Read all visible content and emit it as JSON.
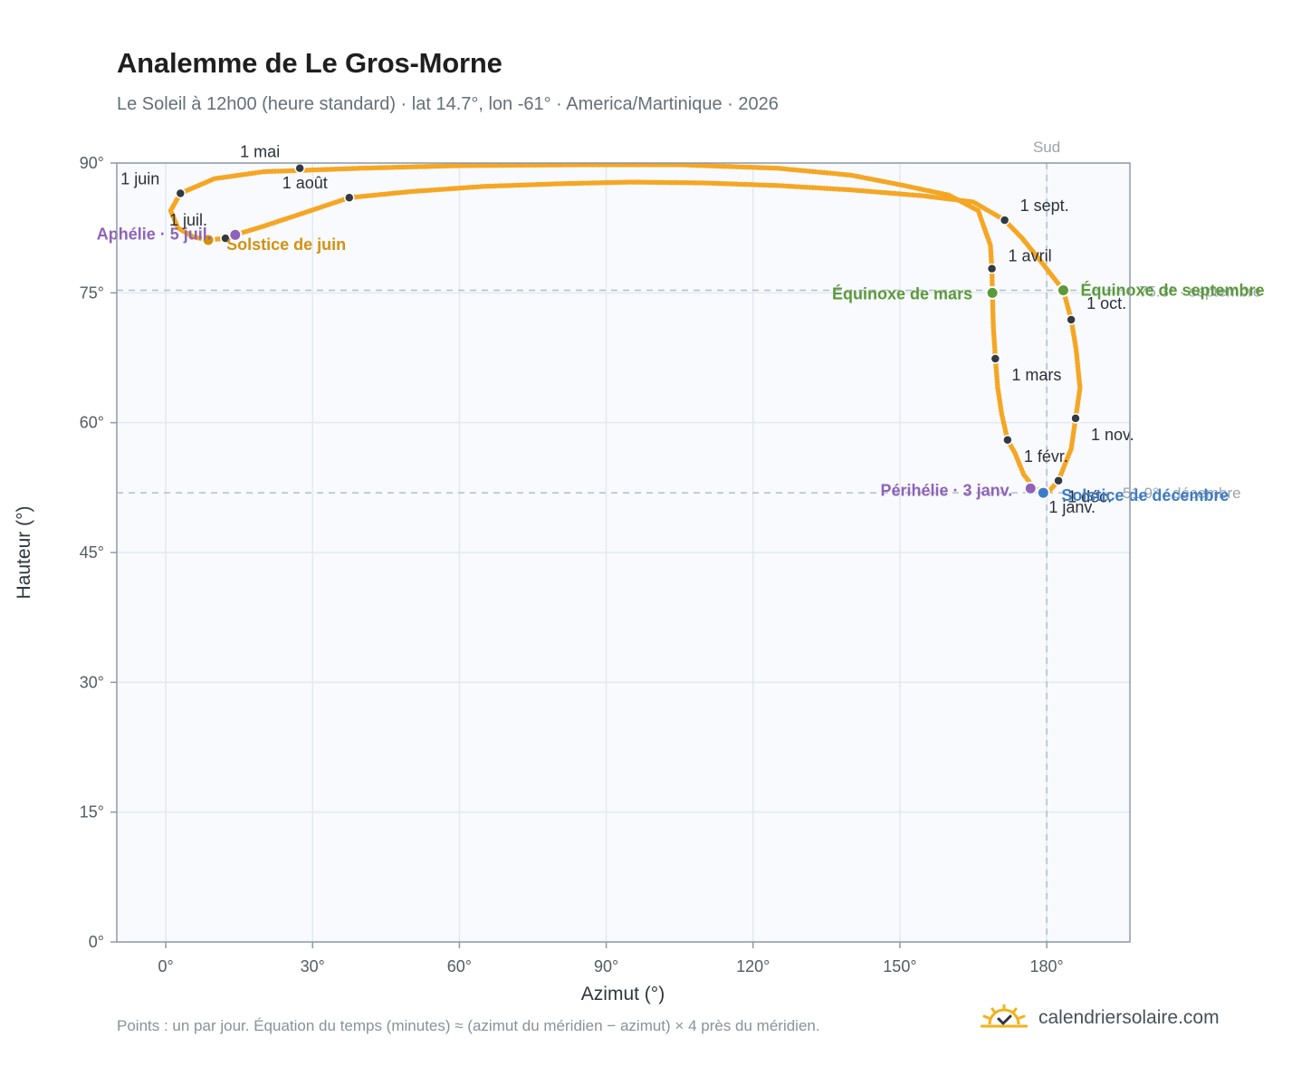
{
  "header": {
    "title": "Analemme de Le Gros-Morne",
    "subtitle": "Le Soleil à 12h00 (heure standard) · lat 14.7°, lon -61° · America/Martinique · 2026"
  },
  "footer": {
    "note": "Points : un par jour. Équation du temps (minutes) ≈ (azimut du méridien − azimut) × 4 près du méridien.",
    "brand": "calendriersolaire.com"
  },
  "colors": {
    "path": "#f5a623",
    "month_dot": "#333a44",
    "equinox": "#5a9a3a",
    "solstice_june": "#d4900f",
    "solstice_december": "#3d7cc9",
    "apsis": "#8e63b8",
    "grid": "#e4e9ef",
    "plot_bg": "#f8fafd",
    "frame": "#8f9aa8",
    "reference_line": "#b4bec9"
  },
  "chart_data": {
    "type": "scatter",
    "title": "Analemme de Le Gros-Morne",
    "xlabel": "Azimut (°)",
    "ylabel": "Hauteur (°)",
    "xlim": [
      -10,
      197
    ],
    "ylim": [
      0,
      90
    ],
    "x_ticks": [
      {
        "value": 0,
        "label": "0°"
      },
      {
        "value": 30,
        "label": "30°"
      },
      {
        "value": 60,
        "label": "60°"
      },
      {
        "value": 90,
        "label": "90°"
      },
      {
        "value": 120,
        "label": "120°"
      },
      {
        "value": 150,
        "label": "150°"
      },
      {
        "value": 180,
        "label": "180°"
      }
    ],
    "y_ticks": [
      {
        "value": 0,
        "label": "0°"
      },
      {
        "value": 15,
        "label": "15°"
      },
      {
        "value": 30,
        "label": "30°"
      },
      {
        "value": 45,
        "label": "45°"
      },
      {
        "value": 60,
        "label": "60°"
      },
      {
        "value": 75,
        "label": "75°"
      },
      {
        "value": 90,
        "label": "90°"
      }
    ],
    "grid": true,
    "reference_lines": {
      "vertical": {
        "x": 180,
        "label": "Sud"
      },
      "horizontal": [
        75.3,
        51.9
      ]
    },
    "daily_path": [
      [
        179.3,
        51.9
      ],
      [
        177.5,
        52.4
      ],
      [
        175.3,
        54.0
      ],
      [
        173.5,
        56.5
      ],
      [
        172.0,
        58.0
      ],
      [
        170.8,
        61.0
      ],
      [
        170.0,
        64.0
      ],
      [
        169.5,
        67.4
      ],
      [
        169.1,
        71.0
      ],
      [
        168.9,
        75.0
      ],
      [
        168.8,
        77.8
      ],
      [
        168.5,
        80.5
      ],
      [
        166.0,
        84.5
      ],
      [
        160.0,
        86.3
      ],
      [
        150.0,
        87.5
      ],
      [
        140.0,
        88.6
      ],
      [
        125.0,
        89.4
      ],
      [
        105.0,
        89.8
      ],
      [
        85.0,
        89.8
      ],
      [
        60.0,
        89.7
      ],
      [
        40.0,
        89.4
      ],
      [
        20.0,
        89.0
      ],
      [
        10.0,
        88.2
      ],
      [
        3.0,
        86.5
      ],
      [
        1.0,
        84.5
      ],
      [
        2.5,
        82.5
      ],
      [
        5.5,
        81.5
      ],
      [
        8.7,
        81.1
      ],
      [
        12.0,
        81.3
      ],
      [
        14.2,
        81.7
      ],
      [
        20.0,
        82.7
      ],
      [
        28.0,
        84.2
      ],
      [
        37.5,
        86.0
      ],
      [
        50.0,
        86.7
      ],
      [
        65.0,
        87.3
      ],
      [
        80.0,
        87.6
      ],
      [
        95.0,
        87.8
      ],
      [
        110.0,
        87.7
      ],
      [
        125.0,
        87.4
      ],
      [
        140.0,
        86.9
      ],
      [
        155.0,
        86.2
      ],
      [
        165.0,
        85.5
      ],
      [
        171.4,
        83.4
      ],
      [
        175.0,
        81.3
      ],
      [
        179.0,
        78.5
      ],
      [
        183.4,
        75.3
      ],
      [
        185.0,
        71.9
      ],
      [
        186.0,
        68.5
      ],
      [
        186.8,
        64.0
      ],
      [
        185.9,
        60.5
      ],
      [
        185.0,
        57.0
      ],
      [
        182.4,
        53.3
      ],
      [
        180.5,
        52.1
      ],
      [
        179.3,
        51.9
      ]
    ],
    "months": [
      {
        "label": "1 janv.",
        "x": 179.3,
        "y": 51.9
      },
      {
        "label": "1 févr.",
        "x": 172.0,
        "y": 58.0
      },
      {
        "label": "1 mars",
        "x": 169.5,
        "y": 67.4
      },
      {
        "label": "1 avril",
        "x": 168.8,
        "y": 77.8
      },
      {
        "label": "1 mai",
        "x": 27.4,
        "y": 89.4
      },
      {
        "label": "1 juin",
        "x": 3.0,
        "y": 86.5
      },
      {
        "label": "1 juil.",
        "x": 12.2,
        "y": 81.3
      },
      {
        "label": "1 août",
        "x": 37.5,
        "y": 86.0
      },
      {
        "label": "1 sept.",
        "x": 171.4,
        "y": 83.4
      },
      {
        "label": "1 oct.",
        "x": 185.0,
        "y": 71.9
      },
      {
        "label": "1 nov.",
        "x": 185.9,
        "y": 60.5
      },
      {
        "label": "1 déc.",
        "x": 182.4,
        "y": 53.3
      }
    ],
    "events": [
      {
        "label": "Équinoxe de mars",
        "x": 168.9,
        "y": 75.0,
        "kind": "equinox"
      },
      {
        "label": "Équinoxe de septembre",
        "x": 183.4,
        "y": 75.3,
        "kind": "equinox"
      },
      {
        "label": "Solstice de juin",
        "x": 8.7,
        "y": 81.1,
        "kind": "solstice_june"
      },
      {
        "label": "Solstice de décembre",
        "x": 179.3,
        "y": 51.9,
        "kind": "solstice_december"
      },
      {
        "label": "Aphélie · 5 juil.",
        "x": 14.2,
        "y": 81.7,
        "kind": "apsis"
      },
      {
        "label": "Périhélie · 3 janv.",
        "x": 176.7,
        "y": 52.4,
        "kind": "apsis"
      }
    ],
    "faint_annotations": [
      "75.3° · septembre",
      "51.9° · décembre"
    ]
  }
}
